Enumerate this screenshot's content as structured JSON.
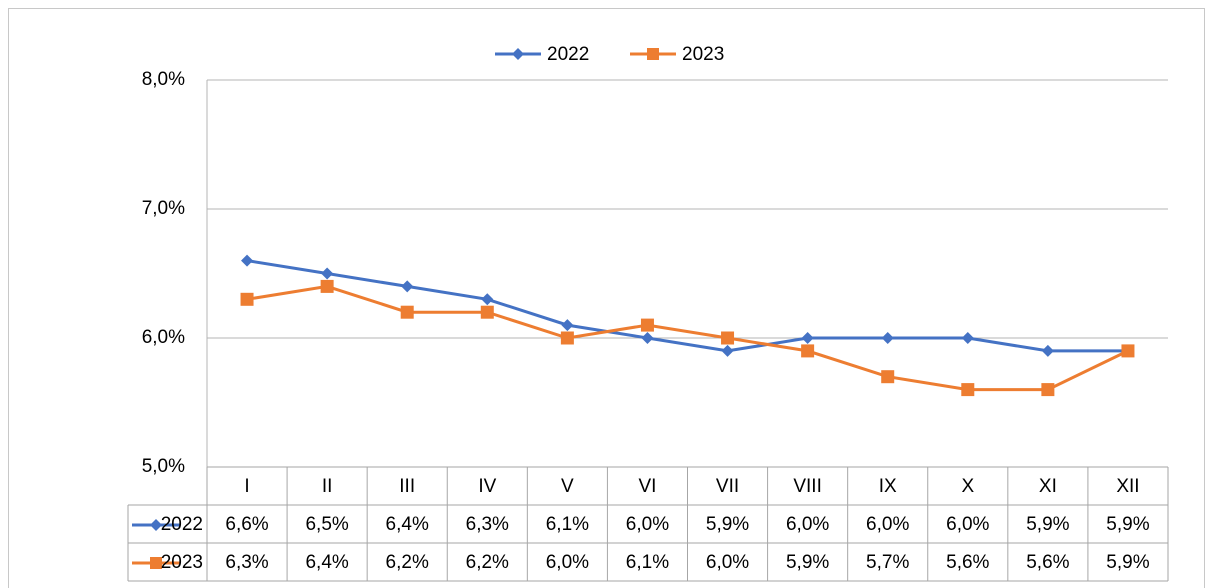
{
  "chart_data": {
    "type": "line",
    "categories": [
      "I",
      "II",
      "III",
      "IV",
      "V",
      "VI",
      "VII",
      "VIII",
      "IX",
      "X",
      "XI",
      "XII"
    ],
    "series": [
      {
        "name": "2022",
        "color": "#4472c4",
        "marker": "diamond",
        "values": [
          6.6,
          6.5,
          6.4,
          6.3,
          6.1,
          6.0,
          5.9,
          6.0,
          6.0,
          6.0,
          5.9,
          5.9
        ],
        "value_labels": [
          "6,6%",
          "6,5%",
          "6,4%",
          "6,3%",
          "6,1%",
          "6,0%",
          "5,9%",
          "6,0%",
          "6,0%",
          "6,0%",
          "5,9%",
          "5,9%"
        ]
      },
      {
        "name": "2023",
        "color": "#ed7d31",
        "marker": "square",
        "values": [
          6.3,
          6.4,
          6.2,
          6.2,
          6.0,
          6.1,
          6.0,
          5.9,
          5.7,
          5.6,
          5.6,
          5.9
        ],
        "value_labels": [
          "6,3%",
          "6,4%",
          "6,2%",
          "6,2%",
          "6,0%",
          "6,1%",
          "6,0%",
          "5,9%",
          "5,7%",
          "5,6%",
          "5,6%",
          "5,9%"
        ]
      }
    ],
    "ylim": [
      5,
      8
    ],
    "yticks": [
      {
        "value": 5,
        "label": "5,0%"
      },
      {
        "value": 6,
        "label": "6,0%"
      },
      {
        "value": 7,
        "label": "7,0%"
      },
      {
        "value": 8,
        "label": "8,0%"
      }
    ],
    "grid": true,
    "legend": "top",
    "data_table": true
  }
}
